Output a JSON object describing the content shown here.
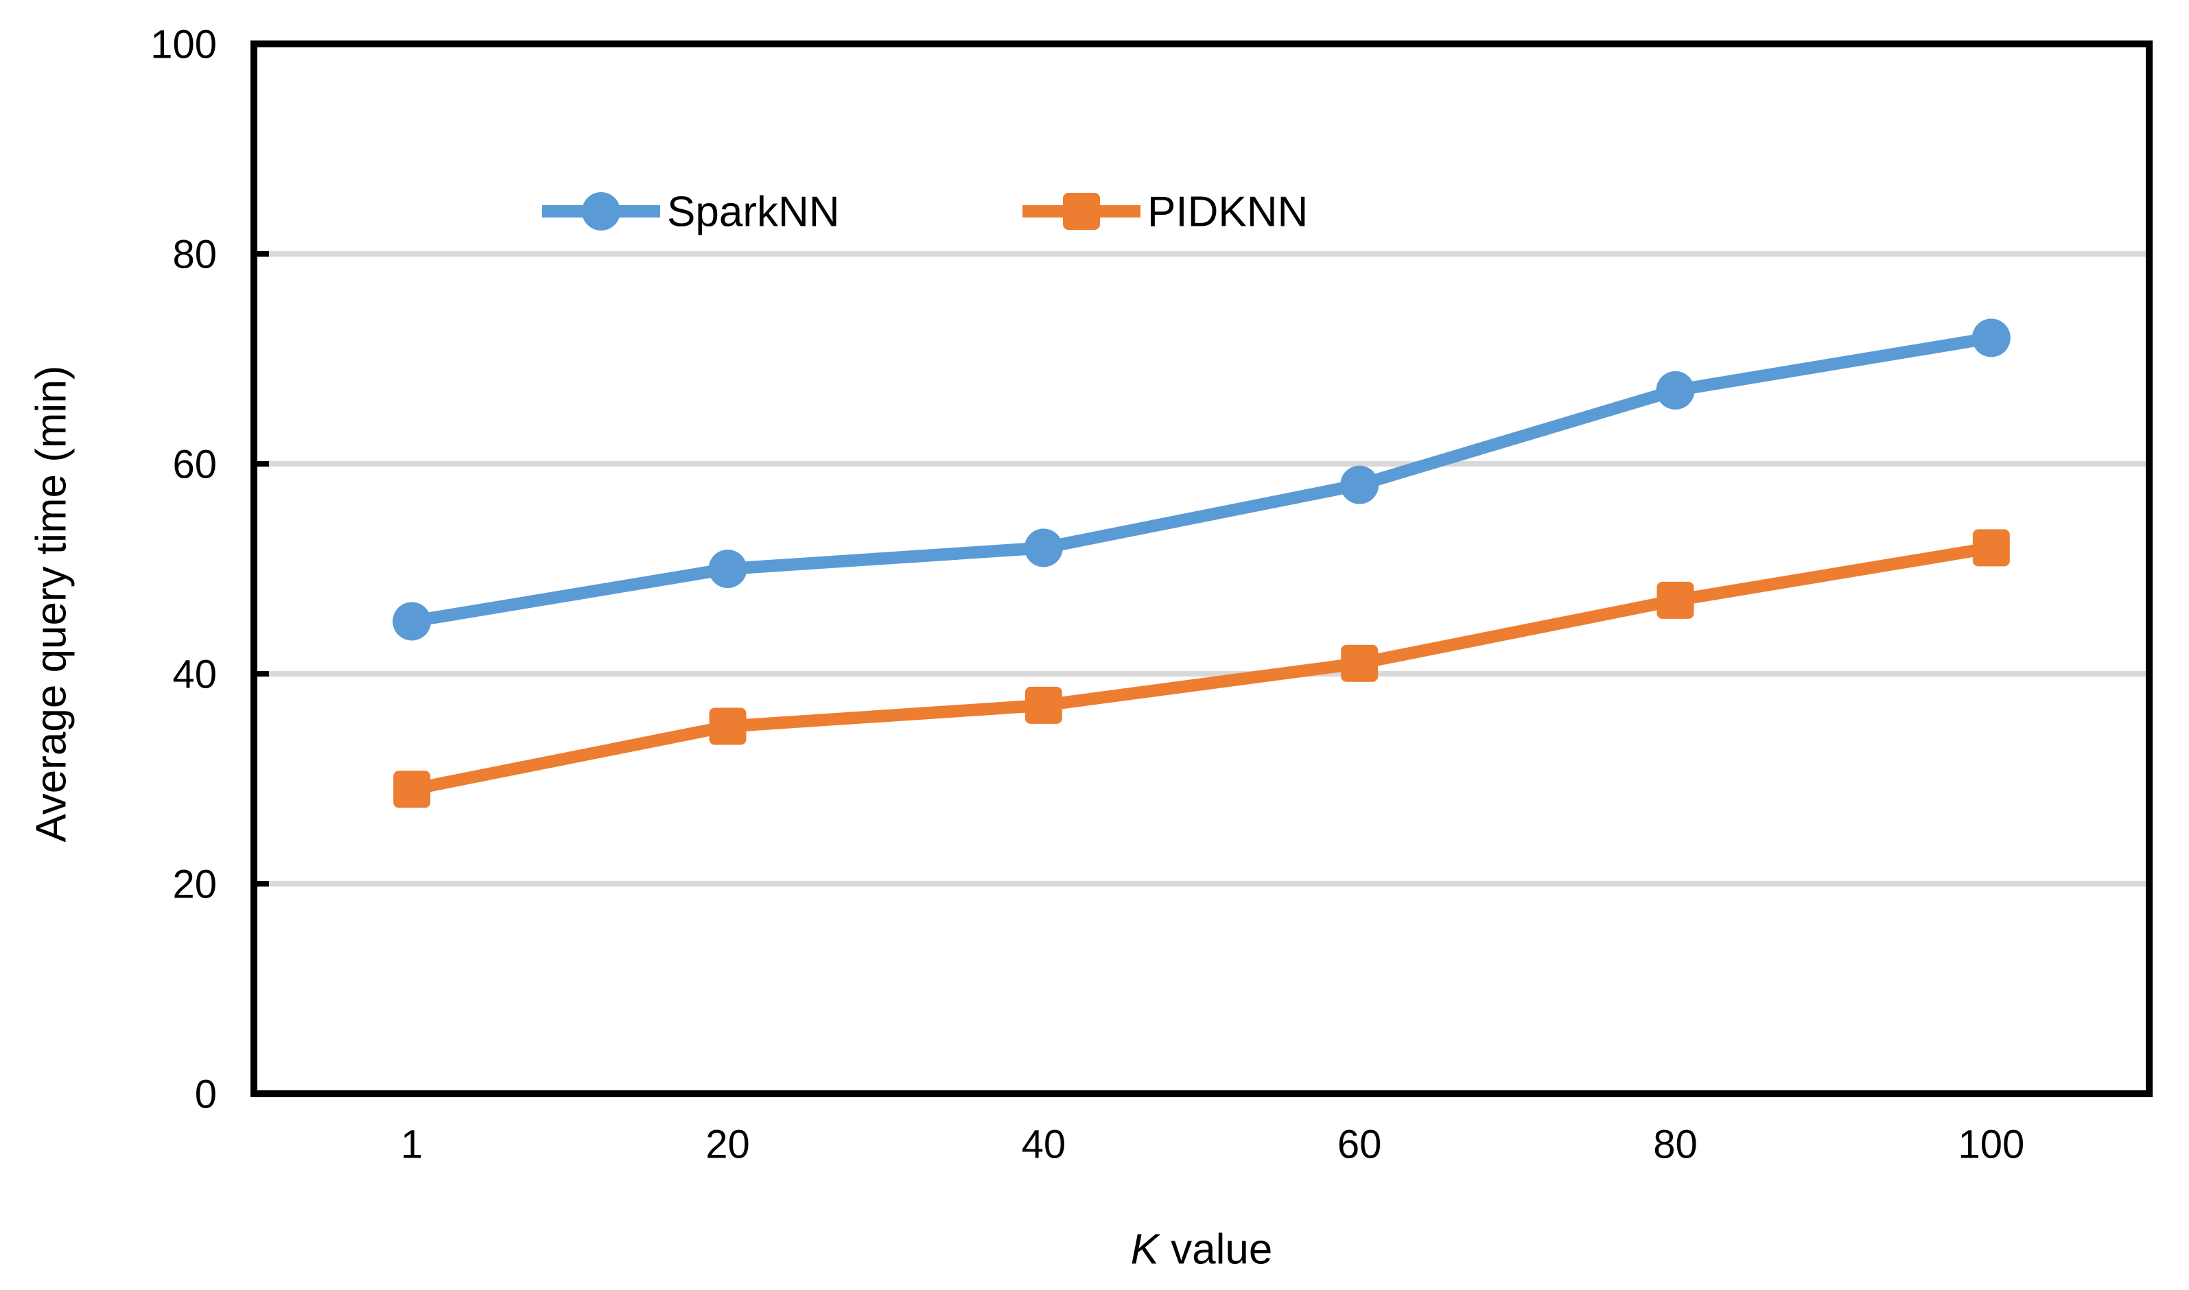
{
  "figure": {
    "background_color": "#FFFFFF",
    "text_color": "#000000"
  },
  "chart_data": {
    "type": "line",
    "title": "",
    "categories": [
      "1",
      "20",
      "40",
      "60",
      "80",
      "100"
    ],
    "series": [
      {
        "name": "SparkNN",
        "values": [
          45,
          50,
          52,
          58,
          67,
          72
        ],
        "color": "#5B9BD5",
        "marker": "circle"
      },
      {
        "name": "PIDKNN",
        "values": [
          29,
          35,
          37,
          41,
          47,
          52
        ],
        "color": "#ED7D31",
        "marker": "square"
      }
    ],
    "xlabel_italic_part": "K",
    "xlabel_regular_part": " value",
    "ylabel": "Average query time (min)",
    "ylim": [
      0,
      100
    ],
    "yticks": [
      0,
      20,
      40,
      60,
      80,
      100
    ],
    "grid": "horizontal-major",
    "gridline_color": "#D9D9D9",
    "axis_color": "#000000",
    "plot_border": "full-box",
    "tick_marks": "inside",
    "legend_position": "top-inside",
    "legend_entries": [
      "SparkNN",
      "PIDKNN"
    ]
  }
}
